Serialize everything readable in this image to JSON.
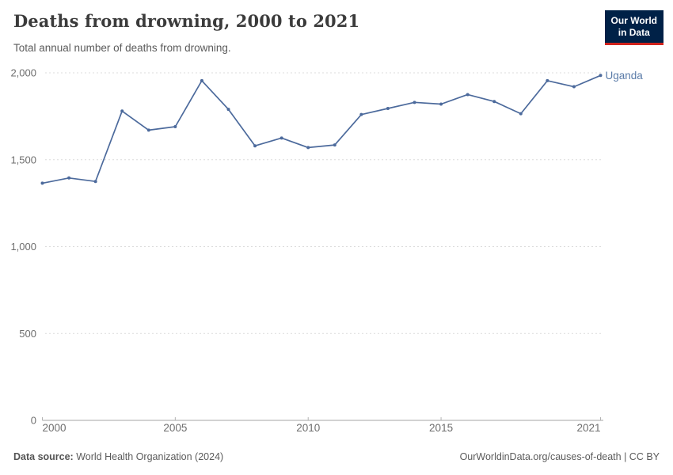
{
  "header": {
    "title": "Deaths from drowning, 2000 to 2021",
    "subtitle": "Total annual number of deaths from drowning.",
    "logo": {
      "line1": "Our World",
      "line2": "in Data"
    }
  },
  "chart_data": {
    "type": "line",
    "title": "Deaths from drowning, 2000 to 2021",
    "subtitle": "Total annual number of deaths from drowning.",
    "x": [
      2000,
      2001,
      2002,
      2003,
      2004,
      2005,
      2006,
      2007,
      2008,
      2009,
      2010,
      2011,
      2012,
      2013,
      2014,
      2015,
      2016,
      2017,
      2018,
      2019,
      2020,
      2021
    ],
    "series": [
      {
        "name": "Uganda",
        "values": [
          1365,
          1395,
          1375,
          1780,
          1670,
          1690,
          1955,
          1790,
          1580,
          1625,
          1570,
          1585,
          1760,
          1795,
          1830,
          1820,
          1875,
          1835,
          1765,
          1955,
          1920,
          1985
        ]
      }
    ],
    "xlabel": "",
    "ylabel": "",
    "ylim": [
      0,
      2000
    ],
    "yticks": [
      0,
      500,
      1000,
      1500,
      2000
    ],
    "ytick_labels": [
      "0",
      "500",
      "1,000",
      "1,500",
      "2,000"
    ],
    "xticks": [
      2000,
      2005,
      2010,
      2015,
      2021
    ],
    "xtick_labels": [
      "2000",
      "2005",
      "2010",
      "2015",
      "2021"
    ],
    "grid": "horizontal-dashed",
    "legend_position": "end-of-line-label",
    "entity_label": "Uganda"
  },
  "colors": {
    "line": "#4c6a9c",
    "entity_label": "#5a7ba8",
    "gridline": "#dcdcdc",
    "baseline": "#a6a6a6",
    "tick": "#b3b3b3",
    "axis_text": "#6e6e6e",
    "logo_bg": "#002147",
    "logo_red": "#d0231d"
  },
  "footer": {
    "datasource_label": "Data source:",
    "datasource_value": " World Health Organization (2024)",
    "attribution": "OurWorldinData.org/causes-of-death | CC BY"
  }
}
